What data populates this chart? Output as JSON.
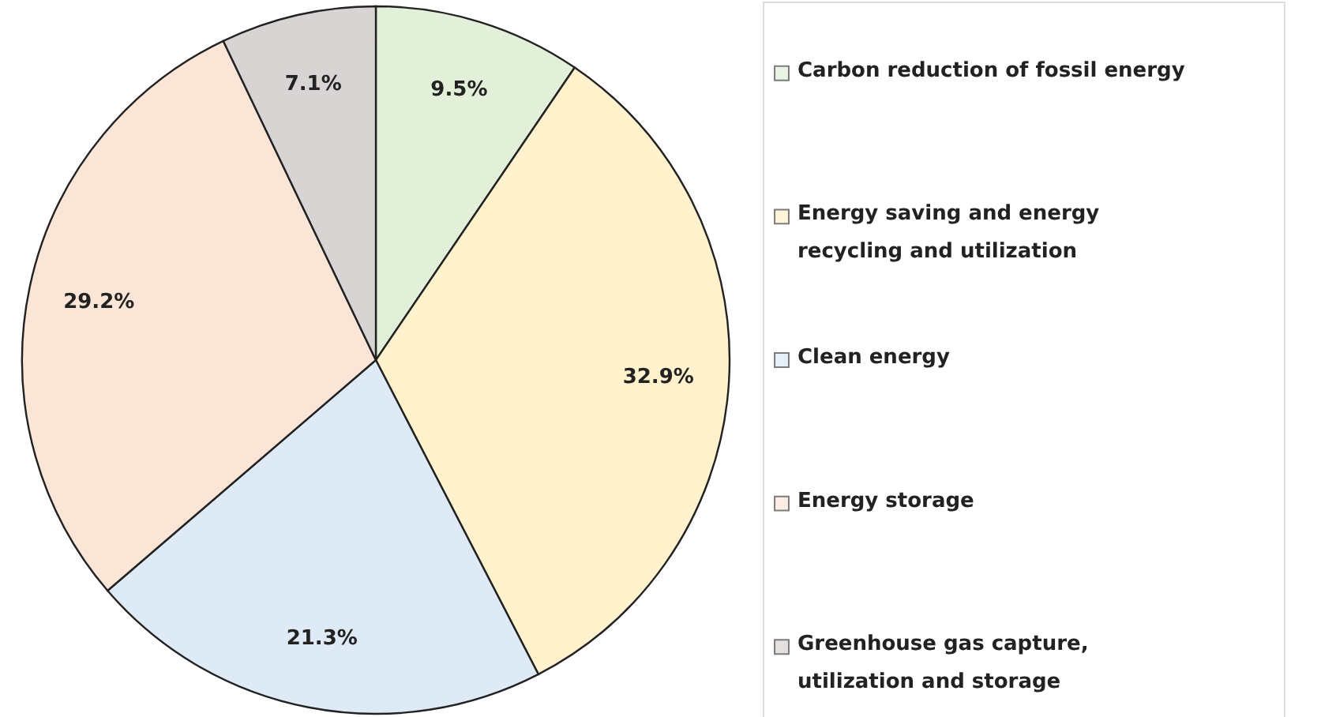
{
  "chart_data": {
    "type": "pie",
    "categories": [
      "Carbon reduction of fossil energy",
      "Energy saving and energy recycling and utilization",
      "Clean energy",
      "Energy storage",
      "Greenhouse gas capture, utilization and storage"
    ],
    "values": [
      9.5,
      32.9,
      21.3,
      29.2,
      7.1
    ],
    "colors": [
      "#e2f0d9",
      "#fff2cc",
      "#deebf7",
      "#fbe5d6",
      "#d9d4d4"
    ],
    "value_labels": [
      "9.5%",
      "32.9%",
      "21.3%",
      "29.2%",
      "7.1%"
    ],
    "legend": "right"
  }
}
